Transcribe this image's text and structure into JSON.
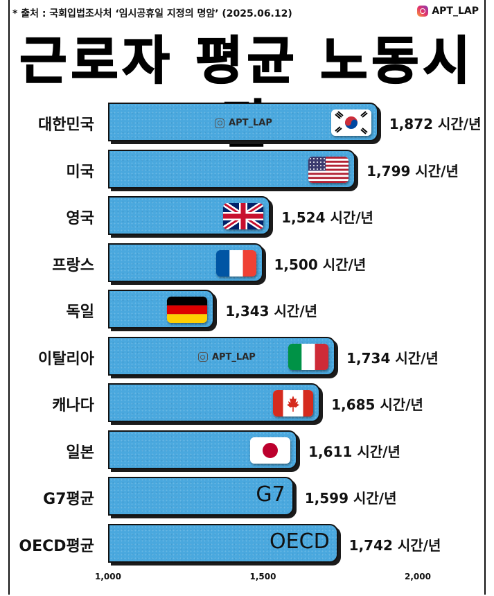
{
  "header": {
    "source": "* 출처 : 국회입법조사처 ‘임시공휴일 지정의 명암’ (2025.06.12)",
    "brand": "APT_LAP",
    "brand_icon": "instagram-icon"
  },
  "title": "근로자 평균 노동시간",
  "chart_data": {
    "type": "bar",
    "orientation": "horizontal",
    "title": "근로자 평균 노동시간",
    "categories": [
      "대한민국",
      "미국",
      "영국",
      "프랑스",
      "독일",
      "이탈리아",
      "캐나다",
      "일본",
      "G7평균",
      "OECD평균"
    ],
    "values": [
      1872,
      1799,
      1524,
      1500,
      1343,
      1734,
      1685,
      1611,
      1599,
      1742
    ],
    "value_labels": [
      "1,872 시간/년",
      "1,799 시간/년",
      "1,524 시간/년",
      "1,500 시간/년",
      "1,343 시간/년",
      "1,734 시간/년",
      "1,685 시간/년",
      "1,611 시간/년",
      "1,599 시간/년",
      "1,742 시간/년"
    ],
    "xlim": [
      1000,
      2000
    ],
    "xticks": [
      1000,
      1500,
      2000
    ],
    "xtick_labels": [
      "1,000",
      "1,500",
      "2,000"
    ],
    "bar_color": "#4aa8de",
    "flags": [
      "korea",
      "usa",
      "uk",
      "france",
      "germany",
      "italy",
      "canada",
      "japan",
      "",
      ""
    ],
    "bar_texts": [
      "",
      "",
      "",
      "",
      "",
      "",
      "",
      "",
      "G7",
      "OECD"
    ],
    "watermarks": [
      "APT_LAP",
      "",
      "",
      "",
      "",
      "APT_LAP",
      "",
      "",
      "",
      ""
    ],
    "grid": false,
    "legend": "none"
  }
}
